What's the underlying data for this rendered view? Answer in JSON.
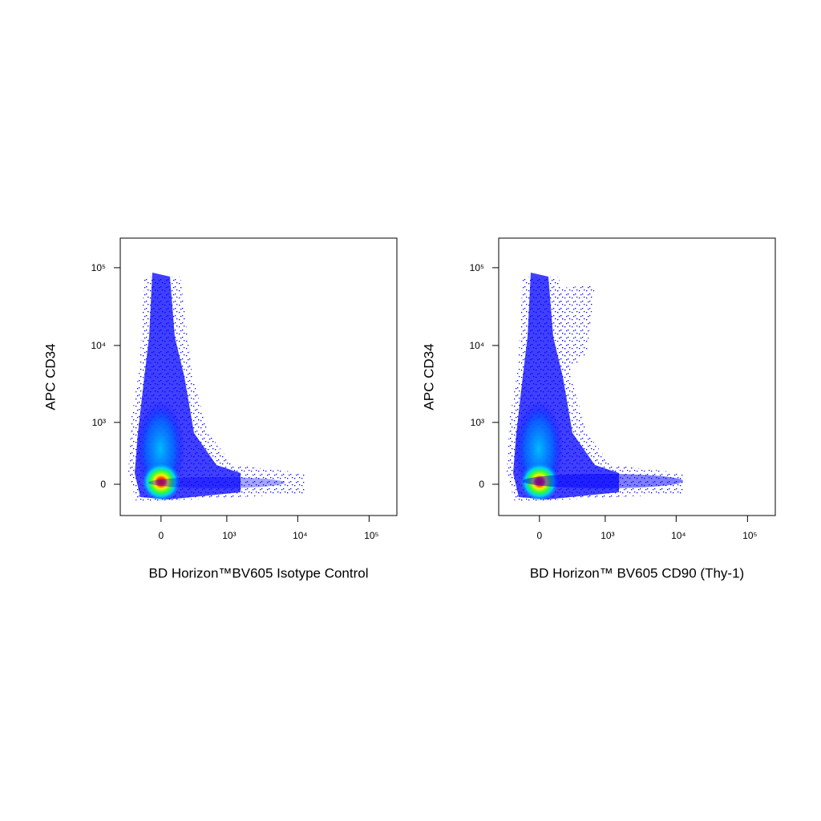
{
  "chart_data": [
    {
      "type": "density",
      "x_label": "BD Horizon™BV605 Isotype Control",
      "y_label": "APC  CD34",
      "xlim": [
        -420,
        245000
      ],
      "ylim": [
        -350,
        240000
      ],
      "xticks": [
        0,
        {
          "value": 1000,
          "label": "10³"
        },
        {
          "value": 10000,
          "label": "10⁴"
        },
        {
          "value": 100000,
          "label": "10⁵"
        }
      ],
      "yticks": [
        0,
        {
          "value": 1000,
          "label": "10³"
        },
        {
          "value": 10000,
          "label": "10⁴"
        },
        {
          "value": 100000,
          "label": "10⁵"
        }
      ]
    },
    {
      "type": "density",
      "x_label": "BD Horizon™ BV605  CD90 (Thy-1)",
      "y_label": "APC  CD34",
      "xlim": [
        -420,
        245000
      ],
      "ylim": [
        -350,
        240000
      ],
      "xticks": [
        0,
        {
          "value": 1000,
          "label": "10³"
        },
        {
          "value": 10000,
          "label": "10⁴"
        },
        {
          "value": 100000,
          "label": "10⁵"
        }
      ],
      "yticks": [
        0,
        {
          "value": 1000,
          "label": "10³"
        },
        {
          "value": 10000,
          "label": "10⁴"
        },
        {
          "value": 100000,
          "label": "10⁵"
        }
      ]
    }
  ]
}
